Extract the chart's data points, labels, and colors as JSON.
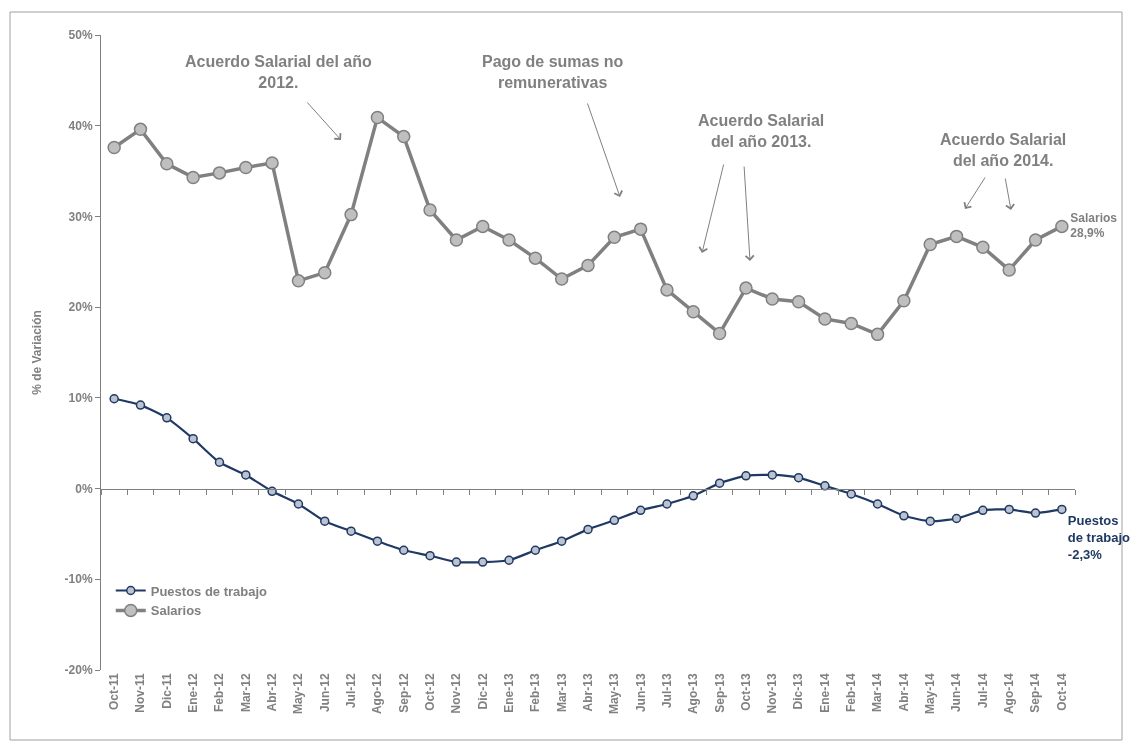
{
  "chart_data": {
    "type": "line",
    "ylabel": "% de Variación",
    "categories": [
      "Oct-11",
      "Nov-11",
      "Dic-11",
      "Ene-12",
      "Feb-12",
      "Mar-12",
      "Abr-12",
      "May-12",
      "Jun-12",
      "Jul-12",
      "Ago-12",
      "Sep-12",
      "Oct-12",
      "Nov-12",
      "Dic-12",
      "Ene-13",
      "Feb-13",
      "Mar-13",
      "Abr-13",
      "May-13",
      "Jun-13",
      "Jul-13",
      "Ago-13",
      "Sep-13",
      "Oct-13",
      "Nov-13",
      "Dic-13",
      "Ene-14",
      "Feb-14",
      "Mar-14",
      "Abr-14",
      "May-14",
      "Jun-14",
      "Jul-14",
      "Ago-14",
      "Sep-14",
      "Oct-14"
    ],
    "series": [
      {
        "name": "Puestos de trabajo",
        "color": "#1f3864",
        "values": [
          9.9,
          9.2,
          7.8,
          5.5,
          2.9,
          1.5,
          -0.3,
          -1.7,
          -3.6,
          -4.7,
          -5.8,
          -6.8,
          -7.4,
          -8.1,
          -8.1,
          -7.9,
          -6.8,
          -5.8,
          -4.5,
          -3.5,
          -2.4,
          -1.7,
          -0.8,
          0.6,
          1.4,
          1.5,
          1.2,
          0.3,
          -0.6,
          -1.7,
          -3.0,
          -3.6,
          -3.3,
          -2.4,
          -2.3,
          -2.7,
          -2.3
        ],
        "value_labels": [
          null,
          null,
          null,
          null,
          null,
          null,
          null,
          null,
          null,
          null,
          null,
          null,
          null,
          null,
          null,
          null,
          null,
          null,
          null,
          null,
          null,
          null,
          null,
          null,
          null,
          null,
          null,
          null,
          null,
          null,
          null,
          null,
          null,
          null,
          null,
          null,
          "Puestos\nde trabajo\n-2,3%"
        ]
      },
      {
        "name": "Salarios",
        "color": "#808080",
        "values": [
          37.6,
          39.6,
          35.8,
          34.3,
          34.8,
          35.4,
          35.9,
          22.9,
          23.8,
          30.2,
          40.9,
          38.8,
          30.7,
          27.4,
          28.9,
          27.4,
          25.4,
          23.1,
          24.6,
          27.7,
          28.6,
          21.9,
          19.5,
          17.1,
          22.1,
          20.9,
          20.6,
          18.7,
          18.2,
          17.0,
          20.7,
          26.9,
          27.8,
          26.6,
          24.1,
          27.4,
          28.9
        ],
        "value_labels": [
          null,
          null,
          null,
          null,
          null,
          null,
          null,
          null,
          null,
          null,
          null,
          null,
          null,
          null,
          null,
          null,
          null,
          null,
          null,
          null,
          null,
          null,
          null,
          null,
          null,
          null,
          null,
          null,
          null,
          null,
          null,
          null,
          null,
          null,
          null,
          null,
          "Salarios\n28,9%"
        ]
      }
    ],
    "ylim": [
      -20,
      50
    ],
    "yticks": [
      {
        "value": -20,
        "label": "-20%"
      },
      {
        "value": -10,
        "label": "-10%"
      },
      {
        "value": 0,
        "label": "0%"
      },
      {
        "value": 10,
        "label": "10%"
      },
      {
        "value": 20,
        "label": "20%"
      },
      {
        "value": 30,
        "label": "30%"
      },
      {
        "value": 40,
        "label": "40%"
      },
      {
        "value": 50,
        "label": "50%"
      }
    ],
    "annotations": [
      "Acuerdo Salarial del año\n2012.",
      "Pago de sumas no\nremunerativas",
      "Acuerdo Salarial\ndel año 2013.",
      "Acuerdo Salarial\ndel año 2014."
    ],
    "legend": "bottom left",
    "marker": "circle"
  }
}
